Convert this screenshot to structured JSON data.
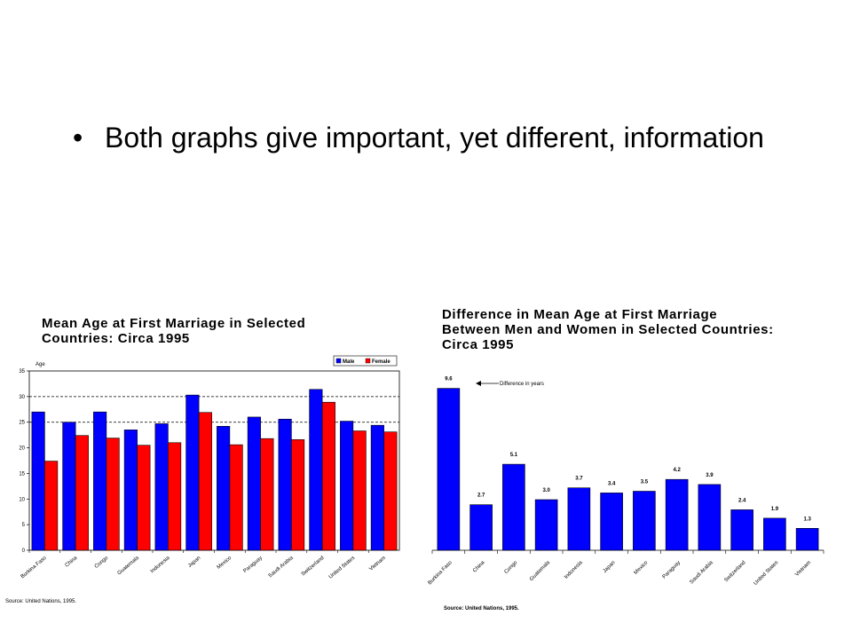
{
  "slide": {
    "bullet": "Both graphs give important, yet different, information"
  },
  "chart_data": [
    {
      "type": "bar",
      "title": "Mean Age at First Marriage in Selected\nCountries:  Circa 1995",
      "ylabel": "Age",
      "ylim": [
        0,
        35
      ],
      "yticks": [
        0,
        5,
        10,
        15,
        20,
        25,
        30,
        35
      ],
      "grid": "dashed at 25 and 30",
      "legend": "top-right",
      "categories": [
        "Burkina Faso",
        "China",
        "Congo",
        "Guatemala",
        "Indonesia",
        "Japan",
        "Mexico",
        "Paraguay",
        "Saudi Arabia",
        "Switzerland",
        "United States",
        "Vietnam"
      ],
      "series": [
        {
          "name": "Male",
          "color": "#0000ff",
          "values": [
            27.0,
            25.0,
            27.0,
            23.5,
            24.7,
            30.3,
            24.2,
            26.0,
            25.6,
            31.4,
            25.2,
            24.4
          ]
        },
        {
          "name": "Female",
          "color": "#ff0000",
          "values": [
            17.4,
            22.4,
            21.9,
            20.5,
            21.0,
            26.9,
            20.6,
            21.8,
            21.6,
            28.9,
            23.3,
            23.1
          ]
        }
      ],
      "source": "Source: United Nations, 1995."
    },
    {
      "type": "bar",
      "title": "Difference in Mean Age at First Marriage\nBetween Men and Women in Selected Countries:\nCirca 1995",
      "annotation": "Difference in years",
      "categories": [
        "Burkina Faso",
        "China",
        "Congo",
        "Guatemala",
        "Indonesia",
        "Japan",
        "Mexico",
        "Paraguay",
        "Saudi Arabia",
        "Switzerland",
        "United States",
        "Vietnam"
      ],
      "values": [
        9.6,
        2.7,
        5.1,
        3.0,
        3.7,
        3.4,
        3.5,
        4.2,
        3.9,
        2.4,
        1.9,
        1.3
      ],
      "labels": [
        "9.6",
        "2.7",
        "5.1",
        "3.0",
        "3.7",
        "3.4",
        "3.5",
        "4.2",
        "3.9",
        "2.4",
        "1.9",
        "1.3"
      ],
      "color": "#0000ff",
      "source": "Source: United Nations, 1995."
    }
  ]
}
